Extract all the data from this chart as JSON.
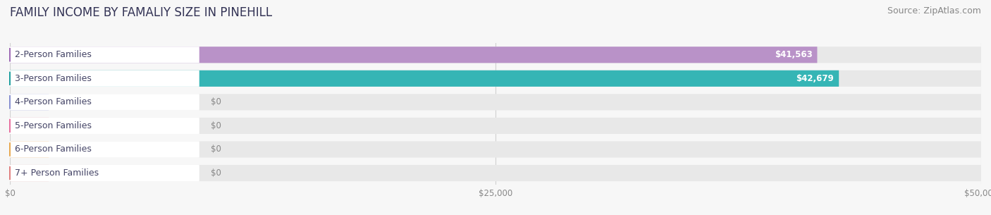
{
  "title": "FAMILY INCOME BY FAMALIY SIZE IN PINEHILL",
  "source": "Source: ZipAtlas.com",
  "categories": [
    "2-Person Families",
    "3-Person Families",
    "4-Person Families",
    "5-Person Families",
    "6-Person Families",
    "7+ Person Families"
  ],
  "values": [
    41563,
    42679,
    0,
    0,
    0,
    0
  ],
  "bar_colors": [
    "#b992c8",
    "#35b5b5",
    "#a8b0e0",
    "#f098b0",
    "#f5c080",
    "#f0a098"
  ],
  "circle_colors": [
    "#9e6ab5",
    "#1e9e9e",
    "#8890d0",
    "#e870a0",
    "#e8a850",
    "#e08080"
  ],
  "value_labels": [
    "$41,563",
    "$42,679",
    "$0",
    "$0",
    "$0",
    "$0"
  ],
  "xlim": [
    0,
    50000
  ],
  "xtick_values": [
    0,
    25000,
    50000
  ],
  "xtick_labels": [
    "$0",
    "$25,000",
    "$50,000"
  ],
  "background_color": "#f7f7f7",
  "bar_background_color": "#e8e8e8",
  "label_bg_color": "#ffffff",
  "title_fontsize": 12,
  "source_fontsize": 9,
  "label_fontsize": 9,
  "value_fontsize": 8.5,
  "bar_height": 0.68,
  "label_text_color": "#444466"
}
